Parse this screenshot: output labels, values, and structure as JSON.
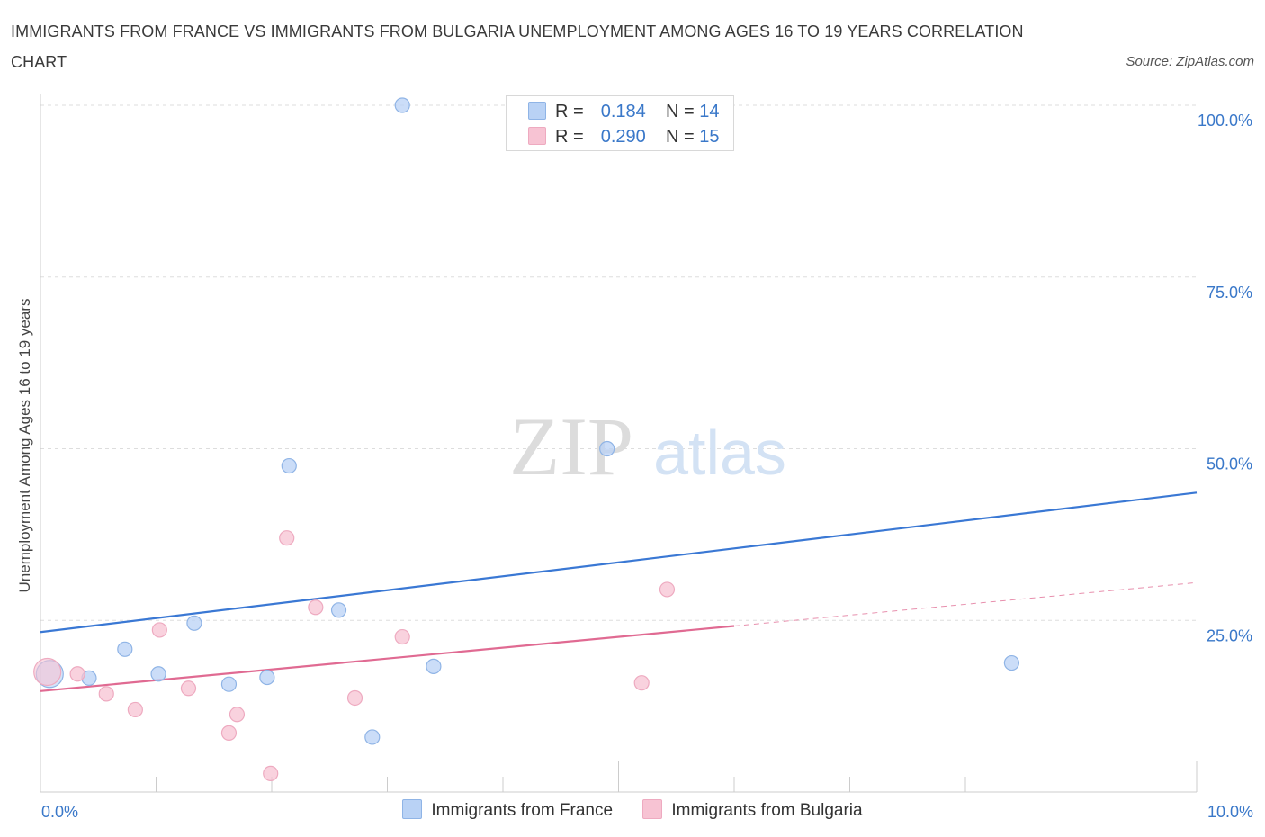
{
  "title": "IMMIGRANTS FROM FRANCE VS IMMIGRANTS FROM BULGARIA UNEMPLOYMENT AMONG AGES 16 TO 19 YEARS CORRELATION CHART",
  "source": "Source: ZipAtlas.com",
  "watermark": {
    "zip": "ZIP",
    "atlas": "atlas"
  },
  "colors": {
    "france": "#3a78d4",
    "france_fill": "#b9d2f5",
    "france_stroke": "#8fb4e6",
    "bulgaria": "#e06a92",
    "bulgaria_fill": "#f7c3d3",
    "bulgaria_stroke": "#eeaac0",
    "axis_text": "#3a78c9",
    "grid": "#dddddd"
  },
  "stats": [
    {
      "r_label": "R =",
      "r_value": "0.184",
      "n_label": "N =",
      "n_value": "14",
      "series": "france"
    },
    {
      "r_label": "R =",
      "r_value": "0.290",
      "n_label": "N =",
      "n_value": "15",
      "series": "bulgaria"
    }
  ],
  "chart_data": {
    "type": "scatter",
    "title": "IMMIGRANTS FROM FRANCE VS IMMIGRANTS FROM BULGARIA UNEMPLOYMENT AMONG AGES 16 TO 19 YEARS CORRELATION CHART",
    "xlabel": "",
    "ylabel": "Unemployment Among Ages 16 to 19 years",
    "xlim": [
      0,
      10
    ],
    "ylim": [
      0,
      100
    ],
    "x_tick_labels": [
      "0.0%",
      "10.0%"
    ],
    "y_ticks": [
      25,
      50,
      75,
      100
    ],
    "y_tick_labels": [
      "25.0%",
      "50.0%",
      "75.0%",
      "100.0%"
    ],
    "grid": true,
    "legend_position": "bottom",
    "series": [
      {
        "name": "Immigrants from France",
        "color_key": "france",
        "r": 0.184,
        "n": 14,
        "trend": {
          "x": [
            0,
            10
          ],
          "y": [
            23.3,
            43.6
          ],
          "dashed_from_x": null
        },
        "points": [
          {
            "x": 0.08,
            "y": 17.2,
            "big": true
          },
          {
            "x": 0.42,
            "y": 16.6
          },
          {
            "x": 0.73,
            "y": 20.8
          },
          {
            "x": 1.02,
            "y": 17.2
          },
          {
            "x": 1.33,
            "y": 24.6
          },
          {
            "x": 1.63,
            "y": 15.7
          },
          {
            "x": 1.96,
            "y": 16.7
          },
          {
            "x": 2.15,
            "y": 47.5
          },
          {
            "x": 2.58,
            "y": 26.5
          },
          {
            "x": 2.87,
            "y": 8.0
          },
          {
            "x": 3.13,
            "y": 100.0
          },
          {
            "x": 3.4,
            "y": 18.3
          },
          {
            "x": 4.9,
            "y": 50.0
          },
          {
            "x": 8.4,
            "y": 18.8
          }
        ]
      },
      {
        "name": "Immigrants from Bulgaria",
        "color_key": "bulgaria",
        "r": 0.29,
        "n": 15,
        "trend": {
          "x": [
            0,
            10
          ],
          "y": [
            14.7,
            30.5
          ],
          "dashed_from_x": 6.0
        },
        "points": [
          {
            "x": 0.06,
            "y": 17.5,
            "big": true
          },
          {
            "x": 0.32,
            "y": 17.2
          },
          {
            "x": 0.57,
            "y": 14.3
          },
          {
            "x": 0.82,
            "y": 12.0
          },
          {
            "x": 1.03,
            "y": 23.6
          },
          {
            "x": 1.28,
            "y": 15.1
          },
          {
            "x": 1.63,
            "y": 8.6
          },
          {
            "x": 1.7,
            "y": 11.3
          },
          {
            "x": 1.99,
            "y": 2.7
          },
          {
            "x": 2.13,
            "y": 37.0
          },
          {
            "x": 2.38,
            "y": 26.9
          },
          {
            "x": 2.72,
            "y": 13.7
          },
          {
            "x": 3.13,
            "y": 22.6
          },
          {
            "x": 5.2,
            "y": 15.9
          },
          {
            "x": 5.42,
            "y": 29.5
          }
        ]
      }
    ]
  }
}
